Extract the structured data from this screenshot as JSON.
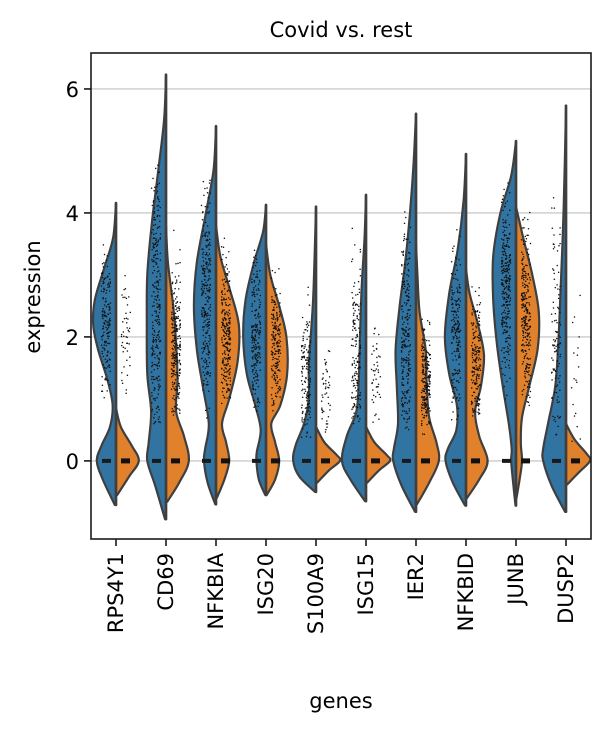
{
  "chart_data": {
    "type": "violin",
    "title": "Covid vs. rest",
    "xlabel": "genes",
    "ylabel": "expression",
    "ylim": [
      -1.26,
      6.58
    ],
    "yticks": [
      0,
      2,
      4,
      6
    ],
    "ytick_labels": [
      "0",
      "2",
      "4",
      "6"
    ],
    "grid": "y",
    "split": true,
    "legend": "none",
    "groups": [
      {
        "name": "Covid",
        "side": "left",
        "color": "#3274a1"
      },
      {
        "name": "rest",
        "side": "right",
        "color": "#e1812c"
      }
    ],
    "outline_color": "#3f3f3f",
    "categories": [
      "RPS4Y1",
      "CD69",
      "NFKBIA",
      "ISG20",
      "S100A9",
      "ISG15",
      "IER2",
      "NFKBID",
      "JUNB",
      "DUSP2"
    ],
    "violins": [
      {
        "gene": "RPS4Y1",
        "covid": {
          "profile": [
            [
              4.16,
              0
            ],
            [
              3.6,
              0.12
            ],
            [
              3.1,
              0.5
            ],
            [
              2.6,
              0.88
            ],
            [
              2.2,
              0.95
            ],
            [
              1.8,
              0.75
            ],
            [
              1.3,
              0.35
            ],
            [
              0.9,
              0.14
            ],
            [
              0.55,
              0.25
            ],
            [
              0.25,
              0.6
            ],
            [
              0,
              0.8
            ],
            [
              -0.3,
              0.55
            ],
            [
              -0.71,
              0.05
            ]
          ],
          "points": {
            "count": 160,
            "center": 2.2,
            "spread": 0.55,
            "min": 1.0,
            "max": 3.5
          }
        },
        "rest": {
          "profile": [
            [
              0.85,
              0
            ],
            [
              0.55,
              0.2
            ],
            [
              0.25,
              0.65
            ],
            [
              0,
              0.95
            ],
            [
              -0.25,
              0.55
            ],
            [
              -0.55,
              0.05
            ]
          ],
          "points": {
            "count": 45,
            "center": 2.0,
            "spread": 0.6,
            "min": 0.9,
            "max": 3.0
          }
        }
      },
      {
        "gene": "CD69",
        "covid": {
          "profile": [
            [
              6.23,
              0
            ],
            [
              5.5,
              0.08
            ],
            [
              4.6,
              0.35
            ],
            [
              3.8,
              0.6
            ],
            [
              3.0,
              0.78
            ],
            [
              2.2,
              0.8
            ],
            [
              1.4,
              0.78
            ],
            [
              0.8,
              0.62
            ],
            [
              0.3,
              0.72
            ],
            [
              0,
              0.78
            ],
            [
              -0.4,
              0.45
            ],
            [
              -0.94,
              0.04
            ]
          ],
          "points": {
            "count": 260,
            "center": 2.4,
            "spread": 1.1,
            "min": 0.5,
            "max": 5.3
          }
        },
        "rest": {
          "profile": [
            [
              3.8,
              0
            ],
            [
              3.2,
              0.08
            ],
            [
              2.5,
              0.3
            ],
            [
              1.9,
              0.42
            ],
            [
              1.3,
              0.48
            ],
            [
              0.8,
              0.42
            ],
            [
              0.4,
              0.75
            ],
            [
              0,
              0.95
            ],
            [
              -0.35,
              0.55
            ],
            [
              -0.66,
              0.05
            ]
          ],
          "points": {
            "count": 230,
            "center": 1.7,
            "spread": 0.6,
            "min": 0.7,
            "max": 3.8
          }
        }
      },
      {
        "gene": "NFKBIA",
        "covid": {
          "profile": [
            [
              5.4,
              0
            ],
            [
              4.7,
              0.1
            ],
            [
              4.0,
              0.42
            ],
            [
              3.2,
              0.8
            ],
            [
              2.5,
              0.92
            ],
            [
              1.8,
              0.8
            ],
            [
              1.2,
              0.55
            ],
            [
              0.6,
              0.3
            ],
            [
              0.2,
              0.45
            ],
            [
              0,
              0.5
            ],
            [
              -0.35,
              0.35
            ],
            [
              -0.7,
              0.03
            ]
          ],
          "points": {
            "count": 260,
            "center": 2.6,
            "spread": 0.85,
            "min": 0.6,
            "max": 4.7
          }
        },
        "rest": {
          "profile": [
            [
              3.8,
              0
            ],
            [
              3.3,
              0.18
            ],
            [
              2.8,
              0.55
            ],
            [
              2.2,
              0.95
            ],
            [
              1.6,
              0.9
            ],
            [
              1.0,
              0.55
            ],
            [
              0.6,
              0.25
            ],
            [
              0.3,
              0.42
            ],
            [
              0,
              0.55
            ],
            [
              -0.3,
              0.35
            ],
            [
              -0.6,
              0.03
            ]
          ],
          "points": {
            "count": 240,
            "center": 2.0,
            "spread": 0.6,
            "min": 0.9,
            "max": 3.8
          }
        }
      },
      {
        "gene": "ISG20",
        "covid": {
          "profile": [
            [
              4.13,
              0
            ],
            [
              3.7,
              0.12
            ],
            [
              3.2,
              0.5
            ],
            [
              2.6,
              0.85
            ],
            [
              2.0,
              0.95
            ],
            [
              1.4,
              0.8
            ],
            [
              0.9,
              0.45
            ],
            [
              0.5,
              0.22
            ],
            [
              0.15,
              0.38
            ],
            [
              0,
              0.4
            ],
            [
              -0.3,
              0.3
            ],
            [
              -0.55,
              0.03
            ]
          ],
          "points": {
            "count": 200,
            "center": 2.1,
            "spread": 0.65,
            "min": 0.8,
            "max": 3.4
          }
        },
        "rest": {
          "profile": [
            [
              3.5,
              0
            ],
            [
              3.0,
              0.18
            ],
            [
              2.5,
              0.55
            ],
            [
              2.0,
              0.85
            ],
            [
              1.4,
              0.88
            ],
            [
              0.9,
              0.6
            ],
            [
              0.6,
              0.22
            ],
            [
              0.3,
              0.38
            ],
            [
              0,
              0.55
            ],
            [
              -0.3,
              0.38
            ],
            [
              -0.55,
              0.03
            ]
          ],
          "points": {
            "count": 190,
            "center": 1.8,
            "spread": 0.5,
            "min": 0.8,
            "max": 3.1
          }
        }
      },
      {
        "gene": "S100A9",
        "covid": {
          "profile": [
            [
              4.1,
              0
            ],
            [
              3.4,
              0.05
            ],
            [
              2.6,
              0.12
            ],
            [
              2.0,
              0.22
            ],
            [
              1.5,
              0.3
            ],
            [
              1.0,
              0.3
            ],
            [
              0.6,
              0.5
            ],
            [
              0.25,
              0.85
            ],
            [
              0,
              0.95
            ],
            [
              -0.25,
              0.7
            ],
            [
              -0.5,
              0.04
            ]
          ],
          "points": {
            "count": 140,
            "center": 1.3,
            "spread": 0.6,
            "min": 0.3,
            "max": 3.6
          }
        },
        "rest": {
          "profile": [
            [
              0.55,
              0
            ],
            [
              0.3,
              0.35
            ],
            [
              0.1,
              0.85
            ],
            [
              0,
              1.0
            ],
            [
              -0.15,
              0.55
            ],
            [
              -0.35,
              0.05
            ]
          ],
          "points": {
            "count": 45,
            "center": 1.1,
            "spread": 0.45,
            "min": 0.3,
            "max": 1.9
          }
        }
      },
      {
        "gene": "ISG15",
        "covid": {
          "profile": [
            [
              4.29,
              0
            ],
            [
              3.6,
              0.06
            ],
            [
              2.8,
              0.18
            ],
            [
              2.0,
              0.25
            ],
            [
              1.3,
              0.3
            ],
            [
              0.8,
              0.4
            ],
            [
              0.4,
              0.8
            ],
            [
              0,
              1.0
            ],
            [
              -0.3,
              0.65
            ],
            [
              -0.65,
              0.04
            ]
          ],
          "points": {
            "count": 150,
            "center": 1.6,
            "spread": 0.7,
            "min": 0.6,
            "max": 3.8
          }
        },
        "rest": {
          "profile": [
            [
              0.55,
              0
            ],
            [
              0.3,
              0.35
            ],
            [
              0.1,
              0.85
            ],
            [
              0,
              1.0
            ],
            [
              -0.15,
              0.55
            ],
            [
              -0.35,
              0.05
            ]
          ],
          "points": {
            "count": 45,
            "center": 1.3,
            "spread": 0.45,
            "min": 0.6,
            "max": 2.6
          }
        }
      },
      {
        "gene": "IER2",
        "covid": {
          "profile": [
            [
              5.6,
              0
            ],
            [
              4.8,
              0.1
            ],
            [
              4.0,
              0.25
            ],
            [
              3.2,
              0.45
            ],
            [
              2.5,
              0.68
            ],
            [
              1.8,
              0.85
            ],
            [
              1.2,
              0.8
            ],
            [
              0.6,
              0.75
            ],
            [
              0.2,
              0.92
            ],
            [
              0,
              0.95
            ],
            [
              -0.4,
              0.6
            ],
            [
              -0.82,
              0.04
            ]
          ],
          "points": {
            "count": 230,
            "center": 2.0,
            "spread": 0.95,
            "min": 0.5,
            "max": 4.8
          }
        },
        "rest": {
          "profile": [
            [
              3.5,
              0
            ],
            [
              3.0,
              0.06
            ],
            [
              2.4,
              0.15
            ],
            [
              1.8,
              0.4
            ],
            [
              1.2,
              0.45
            ],
            [
              0.7,
              0.55
            ],
            [
              0.3,
              0.85
            ],
            [
              0,
              0.95
            ],
            [
              -0.35,
              0.55
            ],
            [
              -0.7,
              0.04
            ]
          ],
          "points": {
            "count": 210,
            "center": 1.3,
            "spread": 0.45,
            "min": 0.3,
            "max": 3.0
          }
        }
      },
      {
        "gene": "NFKBID",
        "covid": {
          "profile": [
            [
              4.95,
              0
            ],
            [
              4.2,
              0.1
            ],
            [
              3.4,
              0.35
            ],
            [
              2.7,
              0.7
            ],
            [
              2.0,
              0.88
            ],
            [
              1.4,
              0.7
            ],
            [
              0.9,
              0.38
            ],
            [
              0.5,
              0.4
            ],
            [
              0.2,
              0.75
            ],
            [
              0,
              0.85
            ],
            [
              -0.35,
              0.55
            ],
            [
              -0.72,
              0.04
            ]
          ],
          "points": {
            "count": 180,
            "center": 2.0,
            "spread": 0.65,
            "min": 0.6,
            "max": 4.3
          }
        },
        "rest": {
          "profile": [
            [
              3.1,
              0
            ],
            [
              2.7,
              0.15
            ],
            [
              2.2,
              0.5
            ],
            [
              1.7,
              0.75
            ],
            [
              1.2,
              0.62
            ],
            [
              0.8,
              0.38
            ],
            [
              0.4,
              0.55
            ],
            [
              0,
              0.9
            ],
            [
              -0.3,
              0.55
            ],
            [
              -0.6,
              0.04
            ]
          ],
          "points": {
            "count": 190,
            "center": 1.6,
            "spread": 0.5,
            "min": 0.7,
            "max": 3.0
          }
        }
      },
      {
        "gene": "JUNB",
        "covid": {
          "profile": [
            [
              5.16,
              0
            ],
            [
              4.6,
              0.2
            ],
            [
              4.0,
              0.65
            ],
            [
              3.3,
              0.95
            ],
            [
              2.6,
              0.95
            ],
            [
              1.9,
              0.8
            ],
            [
              1.2,
              0.55
            ],
            [
              0.6,
              0.3
            ],
            [
              0.2,
              0.18
            ],
            [
              0,
              0.2
            ],
            [
              -0.35,
              0.12
            ],
            [
              -0.72,
              0.02
            ]
          ],
          "points": {
            "count": 280,
            "center": 2.9,
            "spread": 0.75,
            "min": 0.8,
            "max": 4.5
          }
        },
        "rest": {
          "profile": [
            [
              4.1,
              0
            ],
            [
              3.6,
              0.3
            ],
            [
              3.0,
              0.68
            ],
            [
              2.4,
              0.95
            ],
            [
              1.8,
              0.9
            ],
            [
              1.2,
              0.55
            ],
            [
              0.7,
              0.25
            ],
            [
              0.3,
              0.2
            ],
            [
              0,
              0.25
            ],
            [
              -0.3,
              0.15
            ],
            [
              -0.6,
              0.02
            ]
          ],
          "points": {
            "count": 260,
            "center": 2.3,
            "spread": 0.7,
            "min": 0.8,
            "max": 4.1
          }
        }
      },
      {
        "gene": "DUSP2",
        "covid": {
          "profile": [
            [
              5.73,
              0
            ],
            [
              4.8,
              0.05
            ],
            [
              3.8,
              0.12
            ],
            [
              2.8,
              0.22
            ],
            [
              1.9,
              0.32
            ],
            [
              1.2,
              0.45
            ],
            [
              0.6,
              0.75
            ],
            [
              0.2,
              0.95
            ],
            [
              0,
              0.95
            ],
            [
              -0.4,
              0.6
            ],
            [
              -0.82,
              0.04
            ]
          ],
          "points": {
            "count": 110,
            "center": 2.0,
            "spread": 1.0,
            "min": 0.4,
            "max": 4.9
          }
        },
        "rest": {
          "profile": [
            [
              0.6,
              0
            ],
            [
              0.35,
              0.35
            ],
            [
              0.12,
              0.85
            ],
            [
              0,
              1.0
            ],
            [
              -0.18,
              0.55
            ],
            [
              -0.38,
              0.05
            ]
          ],
          "points": {
            "count": 18,
            "center": 1.6,
            "spread": 0.9,
            "min": 0.3,
            "max": 3.2
          }
        }
      }
    ]
  }
}
